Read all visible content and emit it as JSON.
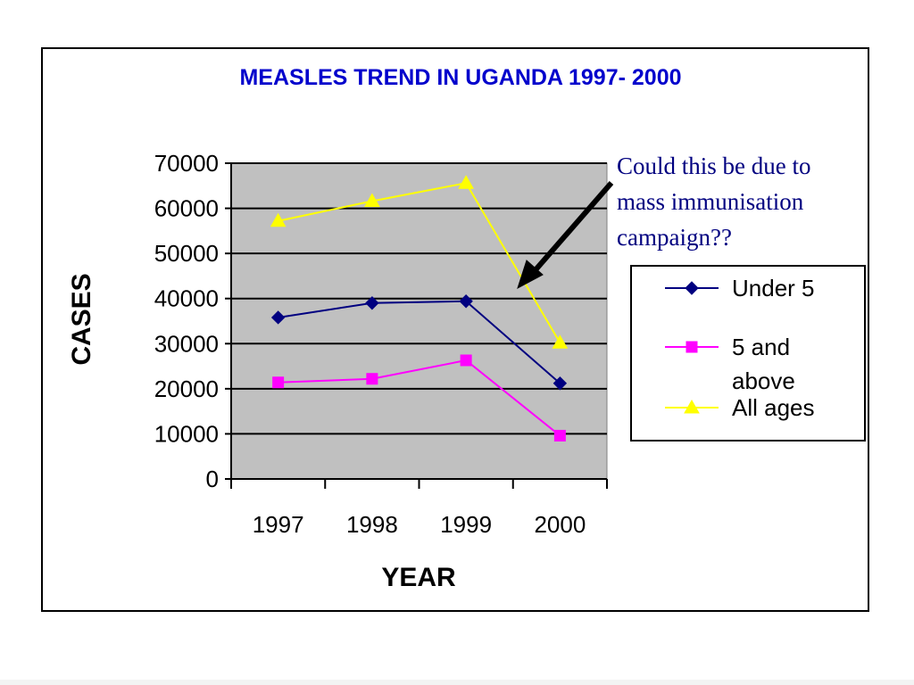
{
  "chart_data": {
    "type": "line",
    "title": "MEASLES TREND IN UGANDA 1997- 2000",
    "xlabel": "YEAR",
    "ylabel": "CASES",
    "categories": [
      "1997",
      "1998",
      "1999",
      "2000"
    ],
    "ylim": [
      0,
      70000
    ],
    "yticks": [
      0,
      10000,
      20000,
      30000,
      40000,
      50000,
      60000,
      70000
    ],
    "grid": true,
    "legend_position": "right",
    "series": [
      {
        "name": "Under 5",
        "values": [
          35800,
          39000,
          39400,
          21200
        ],
        "color": "#000080",
        "marker": "diamond"
      },
      {
        "name": "5 and above",
        "values": [
          21400,
          22200,
          26300,
          9600
        ],
        "color": "#ff00ff",
        "marker": "square"
      },
      {
        "name": "All ages",
        "values": [
          57200,
          61600,
          65600,
          30200
        ],
        "color": "#ffff00",
        "marker": "triangle"
      }
    ],
    "annotation": {
      "lines": [
        "Could this be due to",
        "mass immunisation",
        "campaign??"
      ],
      "color": "#000080"
    },
    "plot_background": "#c0c0c0",
    "title_color": "#0000cc"
  }
}
